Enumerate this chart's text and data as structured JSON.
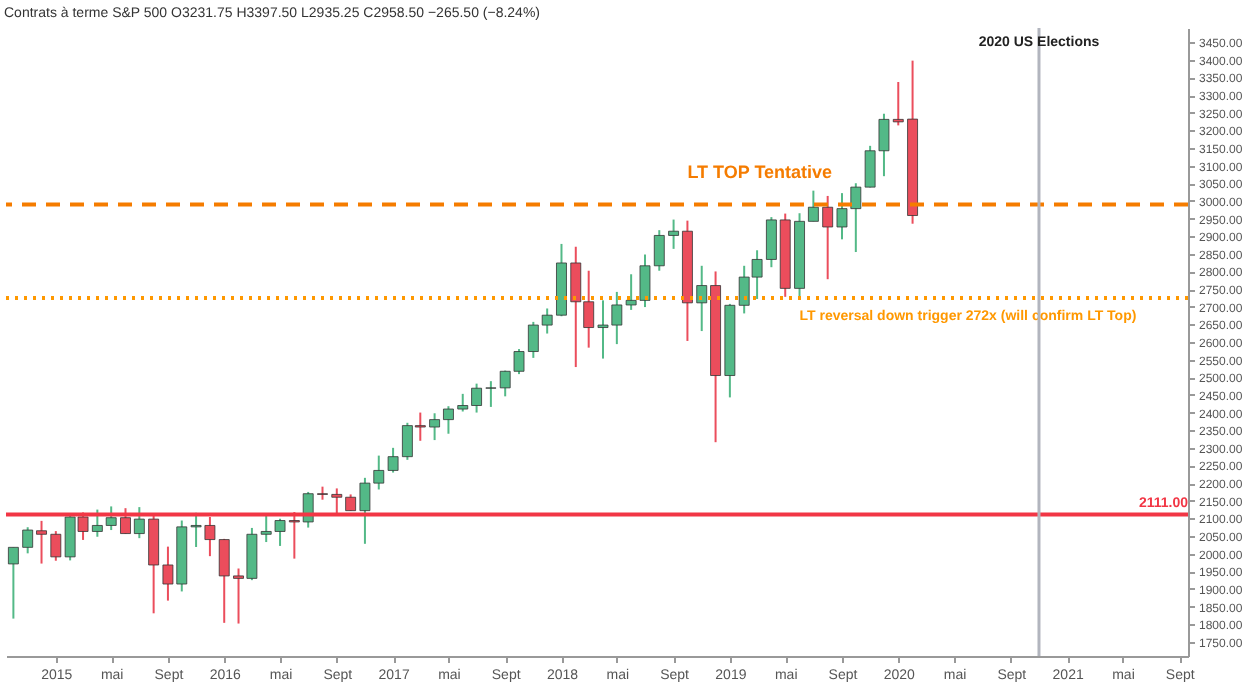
{
  "chart_data": {
    "type": "candlestick",
    "title": "Contrats à terme S&P 500  O3231.75 H3397.50 L2935.25 C2958.50 −265.50 (−8.24%)",
    "x": [
      "2014-10",
      "2014-11",
      "2014-12",
      "2015-01",
      "2015-02",
      "2015-03",
      "2015-04",
      "2015-05",
      "2015-06",
      "2015-07",
      "2015-08",
      "2015-09",
      "2015-10",
      "2015-11",
      "2015-12",
      "2016-01",
      "2016-02",
      "2016-03",
      "2016-04",
      "2016-05",
      "2016-06",
      "2016-07",
      "2016-08",
      "2016-09",
      "2016-10",
      "2016-11",
      "2016-12",
      "2017-01",
      "2017-02",
      "2017-03",
      "2017-04",
      "2017-05",
      "2017-06",
      "2017-07",
      "2017-08",
      "2017-09",
      "2017-10",
      "2017-11",
      "2017-12",
      "2018-01",
      "2018-02",
      "2018-03",
      "2018-04",
      "2018-05",
      "2018-06",
      "2018-07",
      "2018-08",
      "2018-09",
      "2018-10",
      "2018-11",
      "2018-12",
      "2019-01",
      "2019-02",
      "2019-03",
      "2019-04",
      "2019-05",
      "2019-06",
      "2019-07",
      "2019-08",
      "2019-09",
      "2019-10",
      "2019-11",
      "2019-12",
      "2020-01",
      "2020-02"
    ],
    "ohlc": [
      [
        1971,
        2018,
        1816,
        2018
      ],
      [
        2018,
        2075,
        2001,
        2067
      ],
      [
        2065,
        2093,
        1972,
        2055
      ],
      [
        2055,
        2064,
        1980,
        1991
      ],
      [
        1991,
        2115,
        1981,
        2104
      ],
      [
        2104,
        2117,
        2039,
        2063
      ],
      [
        2063,
        2125,
        2048,
        2080
      ],
      [
        2080,
        2134,
        2067,
        2102
      ],
      [
        2102,
        2129,
        2056,
        2057
      ],
      [
        2057,
        2132,
        2044,
        2098
      ],
      [
        2098,
        2112,
        1831,
        1968
      ],
      [
        1968,
        2020,
        1867,
        1914
      ],
      [
        1914,
        2094,
        1893,
        2076
      ],
      [
        2076,
        2116,
        2019,
        2080
      ],
      [
        2080,
        2104,
        1993,
        2040
      ],
      [
        2040,
        2042,
        1804,
        1937
      ],
      [
        1937,
        1958,
        1802,
        1930
      ],
      [
        1930,
        2073,
        1925,
        2055
      ],
      [
        2055,
        2108,
        2033,
        2063
      ],
      [
        2063,
        2099,
        2022,
        2094
      ],
      [
        2094,
        2118,
        1986,
        2090
      ],
      [
        2090,
        2175,
        2074,
        2170
      ],
      [
        2170,
        2190,
        2153,
        2168
      ],
      [
        2168,
        2185,
        2112,
        2160
      ],
      [
        2160,
        2168,
        2121,
        2122
      ],
      [
        2122,
        2215,
        2028,
        2200
      ],
      [
        2200,
        2278,
        2182,
        2236
      ],
      [
        2236,
        2300,
        2230,
        2275
      ],
      [
        2275,
        2371,
        2266,
        2363
      ],
      [
        2363,
        2400,
        2320,
        2359
      ],
      [
        2359,
        2398,
        2322,
        2380
      ],
      [
        2380,
        2418,
        2340,
        2410
      ],
      [
        2410,
        2453,
        2403,
        2420
      ],
      [
        2420,
        2482,
        2400,
        2469
      ],
      [
        2469,
        2489,
        2416,
        2470
      ],
      [
        2470,
        2519,
        2446,
        2517
      ],
      [
        2517,
        2580,
        2509,
        2573
      ],
      [
        2573,
        2657,
        2555,
        2648
      ],
      [
        2648,
        2695,
        2624,
        2676
      ],
      [
        2676,
        2878,
        2673,
        2824
      ],
      [
        2824,
        2870,
        2529,
        2714
      ],
      [
        2714,
        2802,
        2584,
        2641
      ],
      [
        2641,
        2718,
        2553,
        2648
      ],
      [
        2648,
        2742,
        2594,
        2705
      ],
      [
        2705,
        2792,
        2691,
        2718
      ],
      [
        2718,
        2848,
        2699,
        2816
      ],
      [
        2816,
        2917,
        2802,
        2902
      ],
      [
        2902,
        2947,
        2864,
        2914
      ],
      [
        2914,
        2944,
        2603,
        2711
      ],
      [
        2711,
        2816,
        2631,
        2760
      ],
      [
        2760,
        2800,
        2316,
        2505
      ],
      [
        2505,
        2708,
        2443,
        2704
      ],
      [
        2704,
        2816,
        2681,
        2784
      ],
      [
        2784,
        2860,
        2722,
        2834
      ],
      [
        2834,
        2954,
        2812,
        2946
      ],
      [
        2946,
        2964,
        2728,
        2752
      ],
      [
        2752,
        2965,
        2728,
        2942
      ],
      [
        2942,
        3029,
        2942,
        2982
      ],
      [
        2982,
        3014,
        2778,
        2926
      ],
      [
        2926,
        3022,
        2891,
        2978
      ],
      [
        2978,
        3050,
        2855,
        3039
      ],
      [
        3039,
        3156,
        3038,
        3142
      ],
      [
        3142,
        3247,
        3070,
        3231
      ],
      [
        3231,
        3337,
        3214,
        3224
      ],
      [
        3231.75,
        3397.5,
        2935.25,
        2958.5
      ]
    ],
    "colors": [
      "#53b987",
      "#53b987",
      "#eb4d5c",
      "#eb4d5c",
      "#53b987",
      "#eb4d5c",
      "#53b987",
      "#53b987",
      "#eb4d5c",
      "#53b987",
      "#eb4d5c",
      "#eb4d5c",
      "#53b987",
      "#53b987",
      "#eb4d5c",
      "#eb4d5c",
      "#eb4d5c",
      "#53b987",
      "#53b987",
      "#53b987",
      "#eb4d5c",
      "#53b987",
      "#eb4d5c",
      "#eb4d5c",
      "#eb4d5c",
      "#53b987",
      "#53b987",
      "#53b987",
      "#53b987",
      "#eb4d5c",
      "#53b987",
      "#53b987",
      "#53b987",
      "#53b987",
      "#53b987",
      "#53b987",
      "#53b987",
      "#53b987",
      "#53b987",
      "#53b987",
      "#eb4d5c",
      "#eb4d5c",
      "#53b987",
      "#53b987",
      "#53b987",
      "#53b987",
      "#53b987",
      "#53b987",
      "#eb4d5c",
      "#53b987",
      "#eb4d5c",
      "#53b987",
      "#53b987",
      "#53b987",
      "#53b987",
      "#eb4d5c",
      "#53b987",
      "#53b987",
      "#eb4d5c",
      "#53b987",
      "#53b987",
      "#53b987",
      "#53b987",
      "#eb4d5c",
      "#eb4d5c"
    ],
    "xlim": [
      "2014-09-15",
      "2021-09-20"
    ],
    "xticks": [
      {
        "value": "2015-01",
        "label": "2015"
      },
      {
        "value": "2015-05",
        "label": "mai"
      },
      {
        "value": "2015-09",
        "label": "Sept"
      },
      {
        "value": "2016-01",
        "label": "2016"
      },
      {
        "value": "2016-05",
        "label": "mai"
      },
      {
        "value": "2016-09",
        "label": "Sept"
      },
      {
        "value": "2017-01",
        "label": "2017"
      },
      {
        "value": "2017-05",
        "label": "mai"
      },
      {
        "value": "2017-09",
        "label": "Sept"
      },
      {
        "value": "2018-01",
        "label": "2018"
      },
      {
        "value": "2018-05",
        "label": "mai"
      },
      {
        "value": "2018-09",
        "label": "Sept"
      },
      {
        "value": "2019-01",
        "label": "2019"
      },
      {
        "value": "2019-05",
        "label": "mai"
      },
      {
        "value": "2019-09",
        "label": "Sept"
      },
      {
        "value": "2020-01",
        "label": "2020"
      },
      {
        "value": "2020-05",
        "label": "mai"
      },
      {
        "value": "2020-09",
        "label": "Sept"
      },
      {
        "value": "2021-01",
        "label": "2021"
      },
      {
        "value": "2021-05",
        "label": "mai"
      },
      {
        "value": "2021-09",
        "label": "Sept"
      }
    ],
    "ylim": [
      1710,
      3490
    ],
    "yticks": [
      {
        "value": 1750,
        "label": "1750.00"
      },
      {
        "value": 1800,
        "label": "1800.00"
      },
      {
        "value": 1850,
        "label": "1850.00"
      },
      {
        "value": 1900,
        "label": "1900.00"
      },
      {
        "value": 1950,
        "label": "1950.00"
      },
      {
        "value": 2000,
        "label": "2000.00"
      },
      {
        "value": 2050,
        "label": "2050.00"
      },
      {
        "value": 2100,
        "label": "2100.00"
      },
      {
        "value": 2150,
        "label": "2150.00"
      },
      {
        "value": 2200,
        "label": "2200.00"
      },
      {
        "value": 2250,
        "label": "2250.00"
      },
      {
        "value": 2300,
        "label": "2300.00"
      },
      {
        "value": 2350,
        "label": "2350.00"
      },
      {
        "value": 2400,
        "label": "2400.00"
      },
      {
        "value": 2450,
        "label": "2450.00"
      },
      {
        "value": 2500,
        "label": "2500.00"
      },
      {
        "value": 2550,
        "label": "2550.00"
      },
      {
        "value": 2600,
        "label": "2600.00"
      },
      {
        "value": 2650,
        "label": "2650.00"
      },
      {
        "value": 2700,
        "label": "2700.00"
      },
      {
        "value": 2750,
        "label": "2750.00"
      },
      {
        "value": 2800,
        "label": "2800.00"
      },
      {
        "value": 2850,
        "label": "2850.00"
      },
      {
        "value": 2900,
        "label": "2900.00"
      },
      {
        "value": 2950,
        "label": "2950.00"
      },
      {
        "value": 3000,
        "label": "3000.00"
      },
      {
        "value": 3050,
        "label": "3050.00"
      },
      {
        "value": 3100,
        "label": "3100.00"
      },
      {
        "value": 3150,
        "label": "3150.00"
      },
      {
        "value": 3200,
        "label": "3200.00"
      },
      {
        "value": 3250,
        "label": "3250.00"
      },
      {
        "value": 3300,
        "label": "3300.00"
      },
      {
        "value": 3350,
        "label": "3350.00"
      },
      {
        "value": 3400,
        "label": "3400.00"
      },
      {
        "value": 3450,
        "label": "3450.00"
      }
    ],
    "ref_lines": [
      {
        "axis": "y",
        "value": 2111,
        "label": "2111.00",
        "color": "#f23645",
        "line_style": "solid"
      },
      {
        "axis": "y",
        "value": 2990,
        "label": "LT TOP Tentative",
        "color": "#f57c00",
        "line_style": "dashed"
      },
      {
        "axis": "y",
        "value": 2725,
        "label": "LT reversal down trigger 272x (will confirm LT Top)",
        "color": "#ff9800",
        "line_style": "dotted"
      },
      {
        "axis": "x",
        "value": "2020-11",
        "label": "2020 US Elections",
        "color": "#b2b5be",
        "line_style": "solid"
      }
    ],
    "grid": false
  }
}
